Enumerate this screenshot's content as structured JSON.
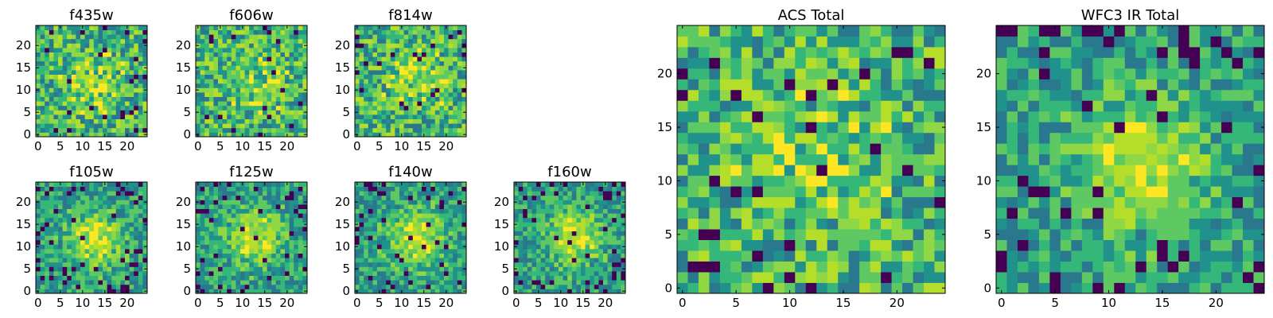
{
  "figure": {
    "colormap": "viridis",
    "colormap_stops": [
      "#440154",
      "#3b528b",
      "#21918c",
      "#5ec962",
      "#c8e020",
      "#fde725"
    ],
    "cell_palette": [
      "#440154",
      "#2a788e",
      "#21918c",
      "#35b779",
      "#5ec962",
      "#8fd744",
      "#b5de2b",
      "#fde725"
    ]
  },
  "chart_data": [
    {
      "type": "heatmap",
      "title": "f435w",
      "grid": [
        25,
        25
      ],
      "xlim": [
        0,
        24
      ],
      "ylim": [
        0,
        24
      ],
      "xticks": [
        0,
        5,
        10,
        15,
        20
      ],
      "xtick_labels": [
        "0",
        "5",
        "10",
        "15",
        "20"
      ],
      "yticks": [
        0,
        5,
        10,
        15,
        20
      ],
      "ytick_labels": [
        "0",
        "5",
        "10",
        "15",
        "20"
      ],
      "pattern": "uniform noise, no central source",
      "cells": []
    },
    {
      "type": "heatmap",
      "title": "f606w",
      "grid": [
        25,
        25
      ],
      "xlim": [
        0,
        24
      ],
      "ylim": [
        0,
        24
      ],
      "xticks": [
        0,
        5,
        10,
        15,
        20
      ],
      "xtick_labels": [
        "0",
        "5",
        "10",
        "15",
        "20"
      ],
      "yticks": [
        0,
        5,
        10,
        15,
        20
      ],
      "ytick_labels": [
        "0",
        "5",
        "10",
        "15",
        "20"
      ],
      "pattern": "noise with faint central source",
      "cells": []
    },
    {
      "type": "heatmap",
      "title": "f814w",
      "grid": [
        25,
        25
      ],
      "xlim": [
        0,
        24
      ],
      "ylim": [
        0,
        24
      ],
      "xticks": [
        0,
        5,
        10,
        15,
        20
      ],
      "xtick_labels": [
        "0",
        "5",
        "10",
        "15",
        "20"
      ],
      "yticks": [
        0,
        5,
        10,
        15,
        20
      ],
      "ytick_labels": [
        "0",
        "5",
        "10",
        "15",
        "20"
      ],
      "pattern": "noise with faint central source",
      "cells": []
    },
    {
      "type": "heatmap",
      "title": "f105w",
      "grid": [
        25,
        25
      ],
      "xlim": [
        0,
        24
      ],
      "ylim": [
        0,
        24
      ],
      "xticks": [
        0,
        5,
        10,
        15,
        20
      ],
      "xtick_labels": [
        "0",
        "5",
        "10",
        "15",
        "20"
      ],
      "yticks": [
        0,
        5,
        10,
        15,
        20
      ],
      "ytick_labels": [
        "0",
        "5",
        "10",
        "15",
        "20"
      ],
      "pattern": "bright central source",
      "cells": []
    },
    {
      "type": "heatmap",
      "title": "f125w",
      "grid": [
        25,
        25
      ],
      "xlim": [
        0,
        24
      ],
      "ylim": [
        0,
        24
      ],
      "xticks": [
        0,
        5,
        10,
        15,
        20
      ],
      "xtick_labels": [
        "0",
        "5",
        "10",
        "15",
        "20"
      ],
      "yticks": [
        0,
        5,
        10,
        15,
        20
      ],
      "ytick_labels": [
        "0",
        "5",
        "10",
        "15",
        "20"
      ],
      "pattern": "bright central source",
      "cells": []
    },
    {
      "type": "heatmap",
      "title": "f140w",
      "grid": [
        25,
        25
      ],
      "xlim": [
        0,
        24
      ],
      "ylim": [
        0,
        24
      ],
      "xticks": [
        0,
        5,
        10,
        15,
        20
      ],
      "xtick_labels": [
        "0",
        "5",
        "10",
        "15",
        "20"
      ],
      "yticks": [
        0,
        5,
        10,
        15,
        20
      ],
      "ytick_labels": [
        "0",
        "5",
        "10",
        "15",
        "20"
      ],
      "pattern": "bright central source",
      "cells": []
    },
    {
      "type": "heatmap",
      "title": "f160w",
      "grid": [
        25,
        25
      ],
      "xlim": [
        0,
        24
      ],
      "ylim": [
        0,
        24
      ],
      "xticks": [
        0,
        5,
        10,
        15,
        20
      ],
      "xtick_labels": [
        "0",
        "5",
        "10",
        "15",
        "20"
      ],
      "yticks": [
        0,
        5,
        10,
        15,
        20
      ],
      "ytick_labels": [
        "0",
        "5",
        "10",
        "15",
        "20"
      ],
      "pattern": "bright central source",
      "cells": []
    },
    {
      "type": "heatmap",
      "title": "ACS Total",
      "grid": [
        25,
        25
      ],
      "xlim": [
        0,
        24
      ],
      "ylim": [
        0,
        24
      ],
      "xticks": [
        0,
        5,
        10,
        15,
        20
      ],
      "xtick_labels": [
        "0",
        "5",
        "10",
        "15",
        "20"
      ],
      "yticks": [
        0,
        5,
        10,
        15,
        20
      ],
      "ytick_labels": [
        "0",
        "5",
        "10",
        "15",
        "20"
      ],
      "pattern": "noise with faint central source",
      "cells": []
    },
    {
      "type": "heatmap",
      "title": "WFC3 IR Total",
      "grid": [
        25,
        25
      ],
      "xlim": [
        0,
        24
      ],
      "ylim": [
        0,
        24
      ],
      "xticks": [
        0,
        5,
        10,
        15,
        20
      ],
      "xtick_labels": [
        "0",
        "5",
        "10",
        "15",
        "20"
      ],
      "yticks": [
        0,
        5,
        10,
        15,
        20
      ],
      "ytick_labels": [
        "0",
        "5",
        "10",
        "15",
        "20"
      ],
      "pattern": "bright central source",
      "cells": []
    }
  ]
}
